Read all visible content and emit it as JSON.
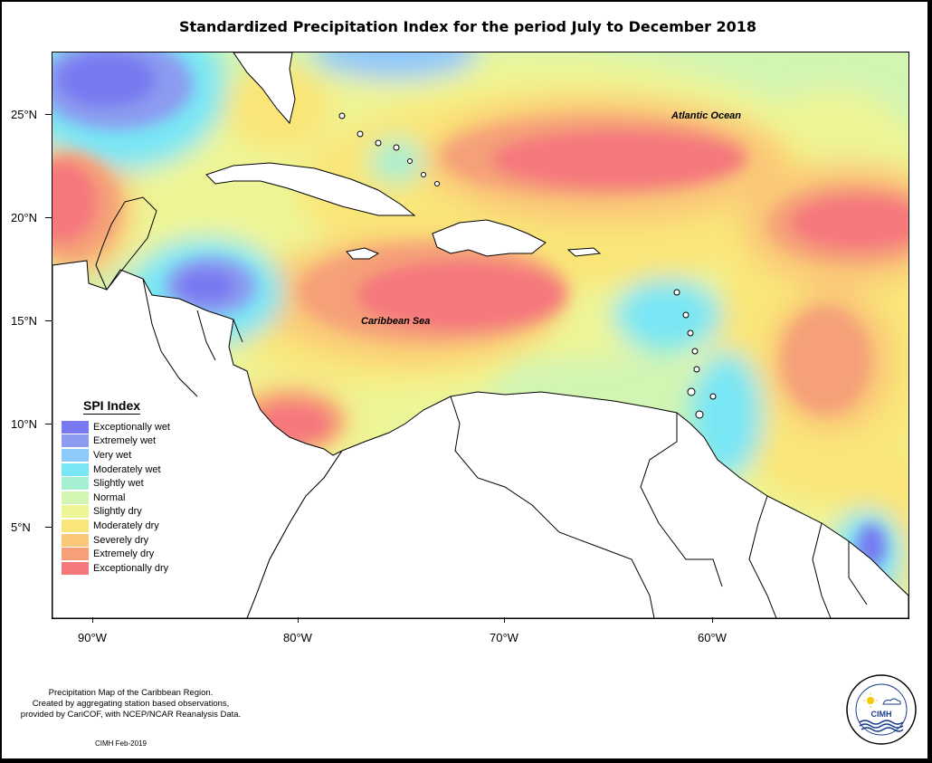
{
  "title": "Standardized Precipitation Index for the period July to December 2018",
  "axes": {
    "y_labels": [
      "25°N",
      "20°N",
      "15°N",
      "10°N",
      "5°N"
    ],
    "x_labels": [
      "90°W",
      "80°W",
      "70°W",
      "60°W"
    ]
  },
  "regions": {
    "atlantic": "Atlantic Ocean",
    "caribbean": "Caribbean Sea"
  },
  "legend": {
    "title": "SPI Index",
    "items": [
      {
        "label": "Exceptionally wet",
        "color": "#7878f0"
      },
      {
        "label": "Extremely wet",
        "color": "#8c9bf0"
      },
      {
        "label": "Very wet",
        "color": "#8fc8fa"
      },
      {
        "label": "Moderately wet",
        "color": "#78e6f5"
      },
      {
        "label": "Slightly wet",
        "color": "#a5f0d2"
      },
      {
        "label": "Normal",
        "color": "#d2f5b4"
      },
      {
        "label": "Slightly dry",
        "color": "#eef596"
      },
      {
        "label": "Moderately dry",
        "color": "#fae678"
      },
      {
        "label": "Severely dry",
        "color": "#fac878"
      },
      {
        "label": "Extremely dry",
        "color": "#f5a078"
      },
      {
        "label": "Exceptionally dry",
        "color": "#f5787d"
      }
    ]
  },
  "footer": {
    "line1": "Precipitation Map of the Caribbean Region.",
    "line2": "Created by aggregating station based observations,",
    "line3": "provided by CariCOF, with NCEP/NCAR Reanalysis Data.",
    "stamp": "CIMH Feb-2019"
  },
  "logo": {
    "text": "CIMH",
    "ring_text": "Caribbean Institute for Meteorology and Hydrology"
  }
}
